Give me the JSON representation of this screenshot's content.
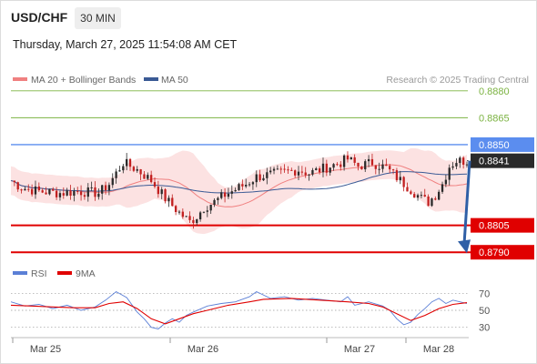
{
  "header": {
    "symbol": "USD/CHF",
    "timeframe": "30 MIN",
    "datetime": "Thursday, March 27, 2025 11:54:08 AM CET"
  },
  "colors": {
    "ma20": "#f08080",
    "bollinger_band": "#fbd8d8",
    "ma50": "#3a5a95",
    "resistance_green": "#7cb342",
    "level_blue": "#5b8def",
    "support_red": "#e00000",
    "arrow": "#2f5fa6",
    "candle_up": "#2a2a2a",
    "candle_down": "#c22020",
    "last_price_badge": "#2a2a2a",
    "rsi": "#5b7fd6",
    "rsi_ma": "#e00000"
  },
  "chart_data": [
    {
      "type": "candlestick",
      "title": "",
      "legend": [
        {
          "label": "MA 20 + Bollinger Bands",
          "color": "#f08080"
        },
        {
          "label": "MA 50",
          "color": "#3a5a95"
        }
      ],
      "watermark": "Research © 2025 Trading Central",
      "x_ticks": [
        "Mar 25",
        "Mar 26",
        "Mar 27",
        "Mar 28"
      ],
      "ylim": [
        0.8783,
        0.8887
      ],
      "levels": [
        {
          "value": 0.888,
          "label": "0.8880",
          "kind": "resistance",
          "color": "#7cb342"
        },
        {
          "value": 0.8865,
          "label": "0.8865",
          "kind": "resistance",
          "color": "#7cb342"
        },
        {
          "value": 0.885,
          "label": "0.8850",
          "kind": "pivot",
          "color": "#5b8def"
        },
        {
          "value": 0.8805,
          "label": "0.8805",
          "kind": "support",
          "color": "#e00000"
        },
        {
          "value": 0.879,
          "label": "0.8790",
          "kind": "support",
          "color": "#e00000"
        }
      ],
      "last_price": {
        "value": 0.8841,
        "label": "0.8841"
      },
      "arrow": {
        "from": 0.8841,
        "to": 0.879,
        "direction": "down"
      },
      "close_path": [
        [
          0,
          0.883
        ],
        [
          3,
          0.8826
        ],
        [
          8,
          0.8824
        ],
        [
          14,
          0.8823
        ],
        [
          19,
          0.8824
        ],
        [
          25,
          0.8823
        ],
        [
          28,
          0.8828
        ],
        [
          32,
          0.884
        ],
        [
          36,
          0.8836
        ],
        [
          40,
          0.883
        ],
        [
          44,
          0.882
        ],
        [
          48,
          0.8812
        ],
        [
          51,
          0.8807
        ],
        [
          53,
          0.881
        ],
        [
          55,
          0.8815
        ],
        [
          58,
          0.8818
        ],
        [
          61,
          0.8822
        ],
        [
          64,
          0.8825
        ],
        [
          67,
          0.8828
        ],
        [
          70,
          0.8832
        ],
        [
          73,
          0.8833
        ],
        [
          76,
          0.8834
        ],
        [
          79,
          0.8835
        ],
        [
          82,
          0.8836
        ],
        [
          85,
          0.8834
        ],
        [
          88,
          0.8836
        ],
        [
          91,
          0.8838
        ],
        [
          94,
          0.884
        ],
        [
          96,
          0.8842
        ],
        [
          99,
          0.8838
        ],
        [
          103,
          0.884
        ],
        [
          107,
          0.8837
        ],
        [
          111,
          0.883
        ],
        [
          114,
          0.8825
        ],
        [
          117,
          0.882
        ],
        [
          119,
          0.8818
        ],
        [
          121,
          0.8822
        ],
        [
          123,
          0.8828
        ],
        [
          125,
          0.8838
        ],
        [
          127,
          0.8841
        ],
        [
          130,
          0.8841
        ]
      ]
    },
    {
      "type": "line",
      "title": "",
      "legend": [
        {
          "label": "RSI",
          "color": "#5b7fd6"
        },
        {
          "label": "9MA",
          "color": "#e00000"
        }
      ],
      "y_ticks": [
        70,
        50,
        30
      ],
      "ylim": [
        20,
        80
      ],
      "series": [
        {
          "name": "RSI",
          "points": [
            [
              0,
              60
            ],
            [
              4,
              55
            ],
            [
              8,
              57
            ],
            [
              12,
              52
            ],
            [
              16,
              56
            ],
            [
              20,
              50
            ],
            [
              24,
              54
            ],
            [
              27,
              62
            ],
            [
              30,
              72
            ],
            [
              33,
              65
            ],
            [
              36,
              48
            ],
            [
              38,
              40
            ],
            [
              40,
              30
            ],
            [
              42,
              28
            ],
            [
              44,
              35
            ],
            [
              46,
              40
            ],
            [
              48,
              36
            ],
            [
              50,
              44
            ],
            [
              52,
              48
            ],
            [
              56,
              55
            ],
            [
              60,
              58
            ],
            [
              64,
              60
            ],
            [
              68,
              66
            ],
            [
              70,
              72
            ],
            [
              74,
              64
            ],
            [
              78,
              66
            ],
            [
              82,
              62
            ],
            [
              86,
              64
            ],
            [
              90,
              62
            ],
            [
              94,
              60
            ],
            [
              96,
              66
            ],
            [
              98,
              56
            ],
            [
              102,
              60
            ],
            [
              106,
              55
            ],
            [
              108,
              50
            ],
            [
              110,
              40
            ],
            [
              112,
              33
            ],
            [
              114,
              36
            ],
            [
              116,
              45
            ],
            [
              118,
              52
            ],
            [
              120,
              60
            ],
            [
              122,
              64
            ],
            [
              124,
              58
            ],
            [
              126,
              62
            ],
            [
              128,
              60
            ],
            [
              130,
              58
            ]
          ]
        },
        {
          "name": "9MA",
          "points": [
            [
              0,
              56
            ],
            [
              6,
              55
            ],
            [
              12,
              54
            ],
            [
              18,
              53
            ],
            [
              24,
              53
            ],
            [
              28,
              58
            ],
            [
              32,
              60
            ],
            [
              36,
              52
            ],
            [
              40,
              40
            ],
            [
              44,
              34
            ],
            [
              48,
              40
            ],
            [
              52,
              46
            ],
            [
              56,
              50
            ],
            [
              62,
              56
            ],
            [
              68,
              60
            ],
            [
              72,
              63
            ],
            [
              80,
              64
            ],
            [
              88,
              62
            ],
            [
              96,
              60
            ],
            [
              102,
              58
            ],
            [
              106,
              54
            ],
            [
              110,
              46
            ],
            [
              114,
              38
            ],
            [
              118,
              44
            ],
            [
              122,
              52
            ],
            [
              126,
              57
            ],
            [
              130,
              59
            ]
          ]
        }
      ]
    }
  ]
}
